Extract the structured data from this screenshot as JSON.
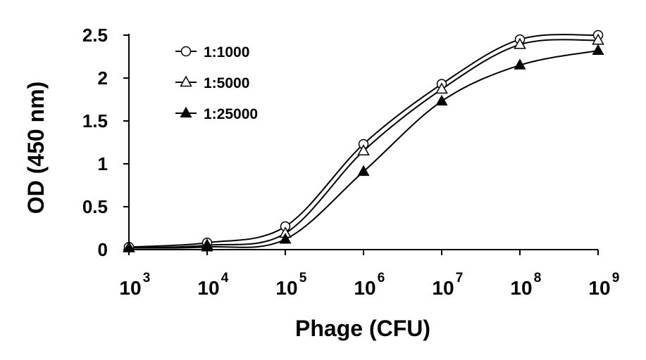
{
  "chart_data": {
    "type": "line",
    "title": "",
    "xlabel": "Phage (CFU)",
    "ylabel": "OD (450 nm)",
    "x_scale": "log",
    "x": [
      1000,
      10000,
      100000,
      1000000,
      10000000,
      100000000,
      1000000000
    ],
    "x_ticks": [
      {
        "base": "10",
        "exp": "3"
      },
      {
        "base": "10",
        "exp": "4"
      },
      {
        "base": "10",
        "exp": "5"
      },
      {
        "base": "10",
        "exp": "6"
      },
      {
        "base": "10",
        "exp": "7"
      },
      {
        "base": "10",
        "exp": "8"
      },
      {
        "base": "10",
        "exp": "9"
      }
    ],
    "y_ticks": [
      "0",
      "0.5",
      "1",
      "1.5",
      "2",
      "2.5"
    ],
    "ylim": [
      0,
      2.5
    ],
    "grid": false,
    "legend_position": "top-left",
    "series": [
      {
        "name": "1:1000",
        "marker": "open-circle",
        "values": [
          0.03,
          0.08,
          0.27,
          1.23,
          1.93,
          2.45,
          2.5
        ]
      },
      {
        "name": "1:5000",
        "marker": "open-triangle",
        "values": [
          0.02,
          0.05,
          0.19,
          1.15,
          1.87,
          2.39,
          2.44
        ]
      },
      {
        "name": "1:25000",
        "marker": "filled-triangle",
        "values": [
          0.02,
          0.03,
          0.12,
          0.91,
          1.73,
          2.15,
          2.32
        ]
      }
    ]
  }
}
